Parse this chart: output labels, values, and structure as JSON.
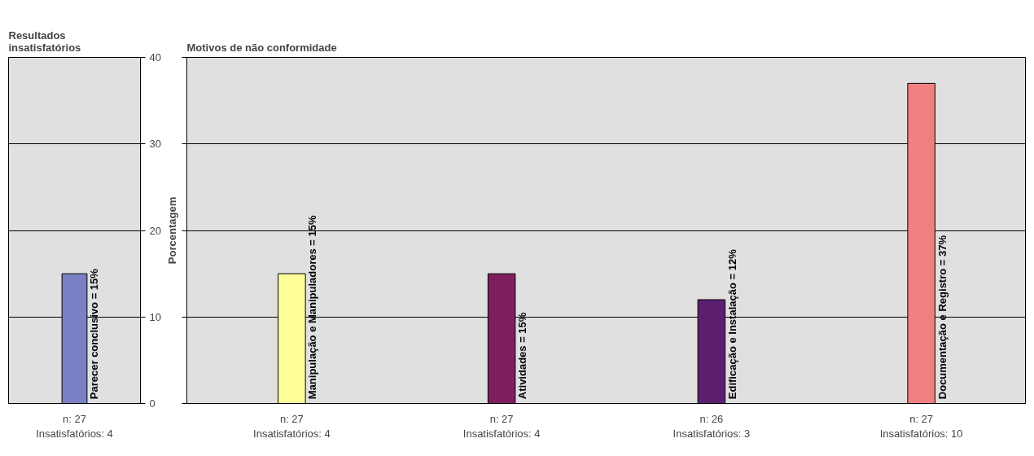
{
  "chart_data": [
    {
      "type": "bar",
      "title": "Resultados\ninsatisfatórios",
      "categories": [
        "n: 27\nInsatisfatórios: 4"
      ],
      "values": [
        15
      ],
      "colors": [
        "#7b80c4"
      ],
      "value_labels": [
        "Parecer conclusivo = 15%"
      ],
      "ylim": [
        0,
        40
      ],
      "yticks": [
        0,
        10,
        20,
        30,
        40
      ],
      "grid": "y"
    },
    {
      "type": "bar",
      "title": "Motivos de não conformidade",
      "ylabel": "Porcentagem",
      "categories": [
        "n: 27\nInsatisfatórios: 4",
        "n: 27\nInsatisfatórios: 4",
        "n: 26\nInsatisfatórios: 3",
        "n: 27\nInsatisfatórios: 10"
      ],
      "values": [
        15,
        15,
        12,
        37
      ],
      "colors": [
        "#ffff99",
        "#7f1f5f",
        "#5c1f70",
        "#f08080"
      ],
      "value_labels": [
        "Manipulação e Manipuladores = 15%",
        "Atividades = 15%",
        "Edificação e Instalação = 12%",
        "Documentação e Registro = 37%"
      ],
      "ylim": [
        0,
        40
      ],
      "yticks": [
        0,
        10,
        20,
        30,
        40
      ],
      "grid": "y",
      "tick_labels": "x"
    }
  ]
}
